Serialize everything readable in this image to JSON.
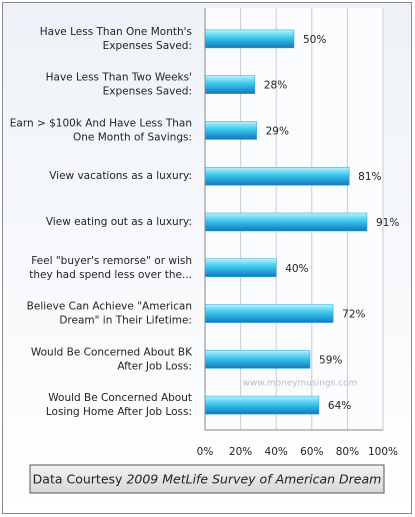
{
  "chart_data": {
    "type": "bar",
    "orientation": "horizontal",
    "categories": [
      [
        "Have Less Than One Month's",
        "Expenses Saved:"
      ],
      [
        "Have Less Than Two Weeks'",
        "Expenses Saved:"
      ],
      [
        "Earn > $100k And Have Less Than",
        "One Month of Savings:"
      ],
      [
        "View vacations as a luxury:"
      ],
      [
        "View eating out as a luxury:"
      ],
      [
        "Feel \"buyer's remorse\" or wish",
        "they had spend less over the..."
      ],
      [
        "Believe Can Achieve \"American",
        "Dream\" in Their Lifetime:"
      ],
      [
        "Would Be Concerned About BK",
        "After Job Loss:"
      ],
      [
        "Would Be Concerned About",
        "Losing Home After Job Loss:"
      ]
    ],
    "values": [
      50,
      28,
      29,
      81,
      91,
      40,
      72,
      59,
      64
    ],
    "value_labels": [
      "50%",
      "28%",
      "29%",
      "81%",
      "91%",
      "40%",
      "72%",
      "59%",
      "64%"
    ],
    "color": "#1ba8d8",
    "xlim": [
      0,
      100
    ],
    "xticks": [
      {
        "value": 0,
        "label": "0%"
      },
      {
        "value": 20,
        "label": "20%"
      },
      {
        "value": 40,
        "label": "40%"
      },
      {
        "value": 60,
        "label": "60%"
      },
      {
        "value": 80,
        "label": "80%"
      },
      {
        "value": 100,
        "label": "100%"
      }
    ],
    "grid": true,
    "watermark": "www.moneymusings.com",
    "source": {
      "prefix": "Data Courtesy",
      "title": "2009  MetLife Survey of American Dream"
    }
  }
}
